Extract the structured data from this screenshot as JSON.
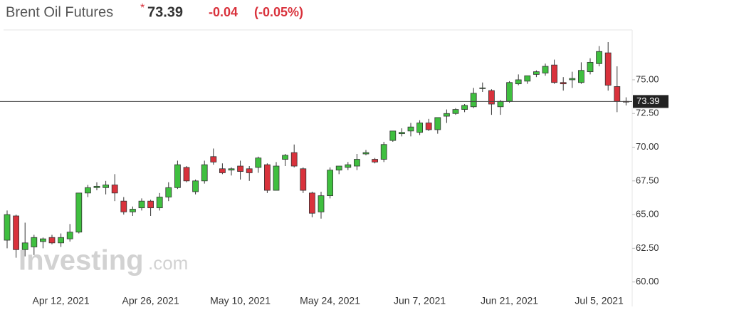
{
  "chart_data": {
    "type": "candlestick",
    "title": "Brent Oil Futures",
    "price": "73.39",
    "change": "-0.04",
    "change_pct": "(-0.05%)",
    "watermark": {
      "brand": "Investing",
      "suffix": ".com"
    },
    "last_price": 73.39,
    "categories": [
      null,
      null,
      null,
      null,
      null,
      null,
      "Apr 12, 2021",
      null,
      null,
      null,
      null,
      null,
      null,
      null,
      null,
      null,
      "Apr 26, 2021",
      null,
      null,
      null,
      null,
      null,
      null,
      null,
      null,
      null,
      "May 10, 2021",
      null,
      null,
      null,
      null,
      null,
      null,
      null,
      null,
      null,
      "May 24, 2021",
      null,
      null,
      null,
      null,
      null,
      null,
      null,
      null,
      null,
      "Jun 7, 2021",
      null,
      null,
      null,
      null,
      null,
      null,
      null,
      null,
      null,
      "Jun 21, 2021",
      null,
      null,
      null,
      null,
      null,
      null,
      null,
      null,
      null,
      "Jul 5, 2021",
      null,
      null,
      null
    ],
    "open": [
      63.1,
      64.9,
      62.4,
      62.6,
      63.0,
      63.3,
      62.9,
      63.2,
      63.7,
      66.6,
      67.0,
      67.0,
      67.2,
      66.0,
      65.2,
      65.5,
      66.0,
      65.5,
      66.3,
      67.0,
      68.5,
      66.7,
      67.5,
      69.3,
      68.4,
      68.3,
      68.6,
      68.4,
      68.5,
      68.7,
      66.8,
      69.1,
      69.6,
      68.4,
      66.6,
      65.2,
      66.4,
      68.3,
      68.5,
      68.6,
      69.5,
      69.1,
      69.1,
      70.5,
      71.0,
      71.2,
      71.1,
      71.8,
      71.3,
      72.3,
      72.5,
      72.8,
      73.0,
      74.4,
      74.2,
      73.0,
      73.4,
      74.7,
      74.9,
      75.4,
      75.5,
      76.1,
      74.8,
      75.0,
      74.8,
      75.6,
      76.2,
      77.0,
      74.5,
      73.4
    ],
    "high": [
      65.3,
      65.0,
      64.4,
      63.5,
      63.3,
      63.5,
      63.6,
      64.3,
      66.6,
      67.2,
      67.4,
      67.5,
      68.0,
      66.3,
      65.6,
      66.2,
      66.1,
      66.6,
      67.4,
      69.0,
      68.6,
      67.6,
      69.0,
      69.9,
      68.8,
      68.5,
      69.0,
      68.6,
      69.3,
      68.8,
      68.9,
      69.5,
      70.2,
      68.5,
      66.7,
      66.7,
      68.5,
      68.6,
      68.9,
      69.5,
      69.8,
      69.2,
      70.4,
      71.2,
      71.4,
      71.8,
      72.0,
      72.1,
      72.2,
      72.8,
      72.9,
      73.2,
      74.4,
      74.8,
      74.3,
      73.5,
      74.9,
      75.4,
      75.3,
      75.7,
      76.2,
      76.5,
      75.2,
      75.6,
      76.3,
      76.6,
      77.5,
      77.8,
      76.0,
      73.7
    ],
    "low": [
      62.5,
      61.8,
      61.9,
      62.0,
      62.5,
      62.8,
      62.6,
      63.0,
      63.6,
      66.3,
      66.8,
      66.5,
      66.0,
      65.0,
      64.9,
      65.3,
      64.9,
      65.3,
      66.0,
      66.9,
      67.4,
      66.5,
      67.3,
      68.7,
      68.0,
      67.9,
      67.6,
      67.5,
      68.1,
      66.6,
      66.8,
      68.6,
      68.5,
      66.6,
      64.8,
      64.7,
      66.2,
      68.0,
      68.3,
      68.3,
      69.4,
      68.8,
      68.9,
      70.4,
      70.8,
      70.8,
      70.9,
      71.2,
      71.0,
      71.8,
      72.4,
      72.6,
      72.9,
      74.1,
      72.4,
      72.4,
      73.3,
      74.6,
      74.7,
      75.2,
      75.3,
      74.7,
      74.2,
      74.4,
      74.7,
      75.4,
      76.0,
      74.2,
      72.6,
      73.1
    ],
    "close": [
      65.0,
      62.4,
      62.9,
      63.3,
      63.2,
      62.9,
      63.3,
      63.7,
      66.6,
      67.0,
      67.1,
      67.2,
      66.6,
      65.2,
      65.4,
      66.0,
      65.5,
      66.3,
      67.0,
      68.7,
      67.5,
      67.5,
      68.7,
      68.9,
      68.1,
      68.4,
      68.2,
      68.1,
      69.2,
      66.8,
      68.6,
      69.4,
      68.6,
      66.8,
      65.1,
      66.4,
      68.3,
      68.6,
      68.7,
      69.1,
      69.6,
      68.9,
      70.2,
      71.2,
      71.1,
      71.5,
      71.8,
      71.3,
      72.2,
      72.5,
      72.8,
      73.1,
      74.0,
      74.4,
      73.2,
      73.4,
      74.8,
      75.0,
      75.3,
      75.6,
      76.0,
      74.8,
      74.7,
      75.1,
      75.7,
      76.3,
      77.1,
      74.6,
      73.4,
      73.39
    ],
    "up_color": "#3fbf3f",
    "down_color": "#d9323c",
    "ylim": [
      59.4,
      78.7
    ],
    "yticks": [
      {
        "value": 60,
        "label": "60.00"
      },
      {
        "value": 62.5,
        "label": "62.50"
      },
      {
        "value": 65,
        "label": "65.00"
      },
      {
        "value": 67.5,
        "label": "67.50"
      },
      {
        "value": 70,
        "label": "70.00"
      },
      {
        "value": 72.5,
        "label": "72.50"
      },
      {
        "value": 75,
        "label": "75.00"
      }
    ]
  }
}
